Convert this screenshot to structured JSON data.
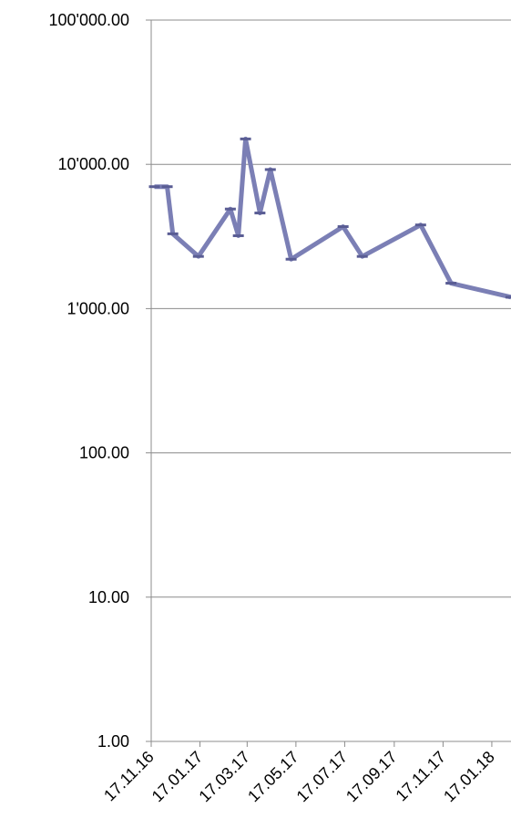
{
  "chart_data": {
    "type": "line",
    "x": [
      "2016-11-21",
      "2016-12-07",
      "2016-12-14",
      "2017-01-15",
      "2017-02-24",
      "2017-03-06",
      "2017-03-15",
      "2017-04-02",
      "2017-04-15",
      "2017-05-11",
      "2017-07-15",
      "2017-08-08",
      "2017-10-20",
      "2017-11-27",
      "2018-02-10"
    ],
    "values": [
      7000,
      7000,
      3300,
      2300,
      4900,
      3200,
      15000,
      4600,
      9200,
      2200,
      3700,
      2300,
      3800,
      1500,
      1200
    ],
    "color": "#7b7fb5",
    "log_scale": true,
    "grid": true,
    "ylim": [
      1,
      100000
    ],
    "yticks": [
      {
        "value": 1,
        "label": "1.00"
      },
      {
        "value": 10,
        "label": "10.00"
      },
      {
        "value": 100,
        "label": "100.00"
      },
      {
        "value": 1000,
        "label": "1'000.00"
      },
      {
        "value": 10000,
        "label": "10'000.00"
      },
      {
        "value": 100000,
        "label": "100'000.00"
      }
    ],
    "xlim": [
      "2016-11-17",
      "2018-02-10"
    ],
    "xticks": [
      {
        "value": "2016-11-17",
        "label": "17.11.16"
      },
      {
        "value": "2017-01-17",
        "label": "17.01.17"
      },
      {
        "value": "2017-03-17",
        "label": "17.03.17"
      },
      {
        "value": "2017-05-17",
        "label": "17.05.17"
      },
      {
        "value": "2017-07-17",
        "label": "17.07.17"
      },
      {
        "value": "2017-09-17",
        "label": "17.09.17"
      },
      {
        "value": "2017-11-17",
        "label": "17.11.17"
      },
      {
        "value": "2018-01-17",
        "label": "17.01.18"
      }
    ]
  }
}
